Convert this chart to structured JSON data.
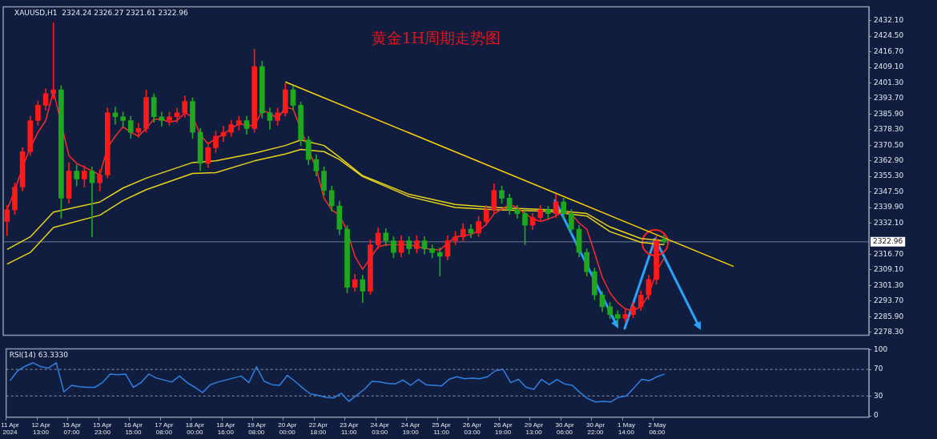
{
  "chart_data": [
    {
      "type": "candlestick",
      "title": "黄金1H周期走势图",
      "annotations": [
        "XAUUSD,H1  2324.24 2326.27 2321.61 2322.96"
      ],
      "categories": [
        null,
        null,
        null,
        null,
        null,
        null,
        null,
        null,
        null,
        null,
        null,
        null,
        null,
        null,
        null,
        null,
        null,
        null,
        null,
        null,
        null,
        null,
        null,
        null,
        null,
        null,
        null,
        null,
        null,
        null,
        null,
        null,
        null,
        null,
        null,
        null,
        null,
        null,
        null,
        null,
        null,
        null,
        null,
        null,
        null,
        null,
        null,
        null,
        null,
        null,
        null,
        null,
        null,
        null,
        null,
        null,
        null,
        null,
        null,
        null,
        null,
        null,
        null,
        null,
        null,
        null,
        null,
        null,
        null,
        null,
        null,
        null,
        null,
        null,
        null,
        null,
        null,
        null,
        null,
        null,
        null,
        null,
        null,
        null,
        null,
        null,
        null,
        null,
        null,
        null,
        null,
        null,
        null,
        null,
        null,
        null,
        null,
        null,
        null,
        null,
        null,
        null,
        null,
        null,
        null,
        null,
        null,
        null,
        null,
        null,
        null,
        null
      ],
      "ohlc": [
        [
          2333.0,
          2341.0,
          2326.0,
          2338.8
        ],
        [
          2338.8,
          2352.0,
          2336.5,
          2350.0
        ],
        [
          2350.0,
          2369.5,
          2348.0,
          2367.5
        ],
        [
          2367.5,
          2385.0,
          2365.5,
          2382.8
        ],
        [
          2382.8,
          2392.5,
          2380.5,
          2390.4
        ],
        [
          2390.4,
          2398.5,
          2388.0,
          2396.1
        ],
        [
          2396.1,
          2431.0,
          2393.5,
          2398.0
        ],
        [
          2398.0,
          2400.0,
          2334.5,
          2344.5
        ],
        [
          2344.5,
          2362.0,
          2342.0,
          2357.9
        ],
        [
          2357.9,
          2361.0,
          2350.5,
          2354.0
        ],
        [
          2354.0,
          2360.5,
          2350.0,
          2357.9
        ],
        [
          2357.9,
          2360.0,
          2325.4,
          2352.1
        ],
        [
          2352.1,
          2358.5,
          2348.0,
          2356.0
        ],
        [
          2356.0,
          2389.0,
          2354.5,
          2386.6
        ],
        [
          2386.6,
          2389.5,
          2381.0,
          2384.7
        ],
        [
          2384.7,
          2387.0,
          2379.5,
          2382.8
        ],
        [
          2382.8,
          2385.0,
          2374.0,
          2377.0
        ],
        [
          2377.0,
          2381.5,
          2374.5,
          2378.9
        ],
        [
          2378.9,
          2398.0,
          2377.0,
          2394.2
        ],
        [
          2394.2,
          2396.0,
          2382.0,
          2384.7
        ],
        [
          2384.7,
          2387.0,
          2380.0,
          2382.8
        ],
        [
          2382.8,
          2387.0,
          2380.5,
          2384.7
        ],
        [
          2384.7,
          2389.0,
          2382.0,
          2386.6
        ],
        [
          2386.6,
          2395.0,
          2384.5,
          2392.3
        ],
        [
          2392.3,
          2394.0,
          2374.0,
          2377.0
        ],
        [
          2377.0,
          2379.0,
          2358.0,
          2361.7
        ],
        [
          2361.7,
          2372.0,
          2359.5,
          2369.4
        ],
        [
          2369.4,
          2377.5,
          2367.0,
          2375.1
        ],
        [
          2375.1,
          2380.0,
          2372.5,
          2377.0
        ],
        [
          2377.0,
          2383.0,
          2375.0,
          2380.8
        ],
        [
          2380.8,
          2385.0,
          2378.0,
          2382.8
        ],
        [
          2382.8,
          2385.0,
          2376.0,
          2378.9
        ],
        [
          2378.9,
          2418.0,
          2377.0,
          2409.5
        ],
        [
          2409.5,
          2412.0,
          2384.0,
          2386.6
        ],
        [
          2386.6,
          2389.0,
          2378.5,
          2382.8
        ],
        [
          2382.8,
          2389.0,
          2380.5,
          2386.6
        ],
        [
          2386.6,
          2401.1,
          2385.0,
          2398.0
        ],
        [
          2398.0,
          2400.0,
          2388.0,
          2390.4
        ],
        [
          2390.4,
          2392.0,
          2370.5,
          2373.2
        ],
        [
          2373.2,
          2375.0,
          2361.0,
          2363.6
        ],
        [
          2363.6,
          2366.0,
          2355.5,
          2357.9
        ],
        [
          2357.9,
          2360.0,
          2346.0,
          2348.3
        ],
        [
          2348.3,
          2350.5,
          2338.0,
          2340.7
        ],
        [
          2340.7,
          2343.0,
          2326.5,
          2329.2
        ],
        [
          2329.2,
          2331.0,
          2297.8,
          2300.5
        ],
        [
          2300.5,
          2307.0,
          2298.5,
          2304.3
        ],
        [
          2304.3,
          2306.5,
          2293.0,
          2298.6
        ],
        [
          2298.6,
          2324.0,
          2297.0,
          2321.5
        ],
        [
          2321.5,
          2330.0,
          2319.5,
          2327.3
        ],
        [
          2327.3,
          2329.5,
          2321.0,
          2323.5
        ],
        [
          2323.5,
          2325.5,
          2315.0,
          2317.7
        ],
        [
          2317.7,
          2326.0,
          2315.5,
          2323.5
        ],
        [
          2323.5,
          2325.5,
          2317.0,
          2319.6
        ],
        [
          2319.6,
          2326.0,
          2317.5,
          2323.5
        ],
        [
          2323.5,
          2325.5,
          2317.0,
          2319.6
        ],
        [
          2319.6,
          2321.5,
          2315.0,
          2317.7
        ],
        [
          2317.7,
          2320.0,
          2306.0,
          2315.8
        ],
        [
          2315.8,
          2326.0,
          2314.0,
          2323.5
        ],
        [
          2323.5,
          2328.0,
          2321.5,
          2325.4
        ],
        [
          2325.4,
          2332.0,
          2323.5,
          2329.2
        ],
        [
          2329.2,
          2331.5,
          2325.0,
          2327.3
        ],
        [
          2327.3,
          2335.5,
          2325.5,
          2333.0
        ],
        [
          2333.0,
          2341.0,
          2331.0,
          2338.8
        ],
        [
          2338.8,
          2351.5,
          2337.0,
          2348.3
        ],
        [
          2348.3,
          2350.5,
          2342.0,
          2344.5
        ],
        [
          2344.5,
          2346.5,
          2336.5,
          2338.8
        ],
        [
          2338.8,
          2341.0,
          2334.5,
          2336.9
        ],
        [
          2336.9,
          2339.0,
          2321.5,
          2331.1
        ],
        [
          2331.1,
          2337.0,
          2329.0,
          2334.9
        ],
        [
          2334.9,
          2341.0,
          2333.0,
          2338.8
        ],
        [
          2338.8,
          2340.5,
          2334.5,
          2336.9
        ],
        [
          2336.9,
          2346.5,
          2335.0,
          2342.6
        ],
        [
          2342.6,
          2344.5,
          2334.5,
          2336.9
        ],
        [
          2336.9,
          2339.0,
          2327.0,
          2329.2
        ],
        [
          2329.2,
          2331.0,
          2315.5,
          2317.7
        ],
        [
          2317.7,
          2319.5,
          2306.0,
          2308.2
        ],
        [
          2308.2,
          2310.0,
          2294.5,
          2296.7
        ],
        [
          2296.7,
          2298.5,
          2288.5,
          2290.9
        ],
        [
          2290.9,
          2293.0,
          2285.0,
          2287.1
        ],
        [
          2287.1,
          2289.0,
          2282.4,
          2285.2
        ],
        [
          2285.2,
          2289.5,
          2283.5,
          2287.1
        ],
        [
          2287.1,
          2293.0,
          2285.5,
          2290.9
        ],
        [
          2290.9,
          2299.0,
          2289.0,
          2296.7
        ],
        [
          2296.7,
          2306.5,
          2294.5,
          2304.4
        ],
        [
          2304.4,
          2326.1,
          2302.0,
          2323.5
        ],
        [
          2324.24,
          2326.27,
          2321.61,
          2322.96
        ],
        null,
        null,
        null,
        null,
        null,
        null,
        null,
        null,
        null,
        null,
        null,
        null,
        null,
        null,
        null,
        null,
        null,
        null,
        null,
        null,
        null,
        null,
        null,
        null,
        null,
        null
      ],
      "colors": [
        "#ff1a1a",
        "#ff1a1a",
        "#ff1a1a",
        "#ff1a1a",
        "#ff1a1a",
        "#ff1a1a",
        "#ff1a1a",
        "#1fa81f",
        "#ff1a1a",
        "#1fa81f",
        "#ff1a1a",
        "#1fa81f",
        "#ff1a1a",
        "#ff1a1a",
        "#1fa81f",
        "#1fa81f",
        "#1fa81f",
        "#ff1a1a",
        "#ff1a1a",
        "#1fa81f",
        "#1fa81f",
        "#ff1a1a",
        "#ff1a1a",
        "#ff1a1a",
        "#1fa81f",
        "#1fa81f",
        "#ff1a1a",
        "#ff1a1a",
        "#ff1a1a",
        "#ff1a1a",
        "#ff1a1a",
        "#1fa81f",
        "#ff1a1a",
        "#1fa81f",
        "#1fa81f",
        "#ff1a1a",
        "#ff1a1a",
        "#1fa81f",
        "#1fa81f",
        "#1fa81f",
        "#1fa81f",
        "#1fa81f",
        "#1fa81f",
        "#1fa81f",
        "#1fa81f",
        "#ff1a1a",
        "#1fa81f",
        "#ff1a1a",
        "#ff1a1a",
        "#1fa81f",
        "#1fa81f",
        "#ff1a1a",
        "#1fa81f",
        "#ff1a1a",
        "#1fa81f",
        "#1fa81f",
        "#1fa81f",
        "#ff1a1a",
        "#ff1a1a",
        "#ff1a1a",
        "#1fa81f",
        "#ff1a1a",
        "#ff1a1a",
        "#ff1a1a",
        "#1fa81f",
        "#1fa81f",
        "#1fa81f",
        "#1fa81f",
        "#ff1a1a",
        "#ff1a1a",
        "#1fa81f",
        "#ff1a1a",
        "#1fa81f",
        "#1fa81f",
        "#1fa81f",
        "#1fa81f",
        "#1fa81f",
        "#1fa81f",
        "#1fa81f",
        "#1fa81f",
        "#ff1a1a",
        "#ff1a1a",
        "#ff1a1a",
        "#ff1a1a",
        "#ff1a1a",
        "#1fa81f",
        null,
        null,
        null,
        null,
        null,
        null,
        null,
        null,
        null,
        null,
        null,
        null,
        null,
        null,
        null,
        null,
        null,
        null,
        null,
        null,
        null,
        null,
        null,
        null,
        null,
        null
      ],
      "series": [
        {
          "type": "line",
          "color": "#ff2a2a",
          "values": [
            2338.8,
            2348.3,
            2359.8,
            2369.4,
            2377.0,
            2382.8,
            2397.3,
            null,
            2365.5,
            2361.7,
            2359.8,
            2357.9,
            2356.0,
            2369.4,
            2375.1,
            2379.7,
            2377.0,
            2375.1,
            2378.9,
            2383.5,
            2383.5,
            2382.0,
            2382.8,
            2386.6,
            2384.7,
            2375.9,
            2371.3,
            2374.0,
            2376.2,
            2378.9,
            2381.2,
            2380.5,
            2380.1,
            2387.7,
            2386.6,
            2383.5,
            2389.3,
            2388.5,
            null,
            null,
            2359.0,
            2344.5,
            2338.8,
            2336.1,
            2328.4,
            2315.8,
            2309.3,
            2315.0,
            2320.4,
            2321.5,
            2321.5,
            2321.5,
            2321.5,
            2320.8,
            2319.6,
            2319.3,
            2318.9,
            2322.3,
            2325.4,
            2326.1,
            2326.5,
            2328.4,
            2331.5,
            2336.8,
            2339.1,
            2341.4,
            2339.9,
            2336.8,
            2334.5,
            2333.0,
            2334.2,
            2335.7,
            2338.0,
            2336.8,
            2332.3,
            2329.2,
            2317.7,
            2305.5,
            2297.8,
            2292.9,
            2289.8,
            2289.0,
            2290.9,
            2296.7,
            2308.2,
            2315.0,
            null,
            null,
            null,
            null,
            null,
            null,
            null,
            null,
            null,
            null,
            null,
            null,
            null,
            null,
            null,
            null,
            null,
            null,
            null,
            null,
            null,
            null,
            null,
            null,
            null,
            null
          ]
        },
        {
          "type": "line",
          "color": "#e8d21a",
          "values": [
            2319.2,
            null,
            null,
            2325.4,
            null,
            null,
            2337.6,
            null,
            null,
            null,
            null,
            null,
            2342.6,
            null,
            null,
            2349.5,
            null,
            null,
            2354.4,
            null,
            null,
            null,
            null,
            null,
            2362.1,
            null,
            null,
            2362.9,
            null,
            null,
            null,
            null,
            2366.7,
            null,
            null,
            null,
            2370.5,
            null,
            2373.2,
            null,
            null,
            2370.5,
            null,
            2364.8,
            null,
            null,
            2355.6,
            null,
            null,
            null,
            null,
            null,
            2346.4,
            null,
            null,
            null,
            null,
            null,
            2341.4,
            null,
            null,
            null,
            null,
            2339.9,
            null,
            null,
            null,
            null,
            null,
            null,
            2338.8,
            null,
            null,
            null,
            null,
            2336.9,
            null,
            null,
            2330.3,
            null,
            null,
            null,
            2324.6,
            null,
            null,
            2323.5,
            null,
            null,
            null,
            null,
            null,
            null,
            null,
            null,
            null,
            null,
            null,
            null,
            null,
            null,
            null,
            null,
            null,
            null,
            null,
            null,
            null,
            null,
            null,
            null,
            null,
            null
          ]
        },
        {
          "type": "line",
          "color": "#e8d21a",
          "values": [
            2312.0,
            null,
            null,
            2317.7,
            null,
            null,
            2330.0,
            null,
            null,
            null,
            null,
            null,
            2336.1,
            null,
            null,
            2343.3,
            null,
            null,
            2348.7,
            null,
            null,
            null,
            null,
            null,
            2356.7,
            null,
            null,
            2357.1,
            null,
            null,
            null,
            null,
            2362.9,
            null,
            null,
            null,
            2366.3,
            null,
            2368.6,
            null,
            null,
            2367.5,
            null,
            2363.6,
            null,
            null,
            2355.2,
            null,
            null,
            null,
            null,
            null,
            2345.3,
            null,
            null,
            null,
            null,
            null,
            2339.9,
            null,
            null,
            null,
            null,
            2338.8,
            null,
            null,
            null,
            null,
            null,
            null,
            2338.0,
            null,
            null,
            null,
            null,
            2335.7,
            null,
            null,
            2328.0,
            null,
            null,
            null,
            2322.7,
            null,
            null,
            2321.5,
            null,
            null,
            null,
            null,
            null,
            null,
            null,
            null,
            null,
            null,
            null,
            null,
            null,
            null,
            null,
            null,
            null,
            null,
            null,
            null,
            null,
            null,
            null,
            null,
            null,
            null
          ]
        },
        {
          "type": "line",
          "color": "#ffd400",
          "values": [
            null,
            null,
            null,
            null,
            null,
            null,
            null,
            null,
            null,
            null,
            null,
            null,
            null,
            null,
            null,
            null,
            null,
            null,
            null,
            null,
            null,
            null,
            null,
            null,
            null,
            null,
            null,
            null,
            null,
            null,
            null,
            null,
            null,
            null,
            null,
            null,
            2401.9,
            null,
            null,
            null,
            null,
            null,
            null,
            null,
            null,
            null,
            null,
            null,
            null,
            null,
            null,
            null,
            null,
            null,
            null,
            null,
            null,
            null,
            null,
            null,
            null,
            null,
            null,
            null,
            null,
            null,
            null,
            null,
            null,
            null,
            null,
            null,
            null,
            null,
            null,
            null,
            null,
            null,
            null,
            null,
            null,
            null,
            null,
            null,
            null,
            null,
            null,
            null,
            null,
            null,
            null,
            null,
            null,
            null,
            2310.8,
            null,
            null,
            null,
            null,
            null,
            null,
            null,
            null,
            null,
            null,
            null,
            null,
            null,
            null,
            null,
            null,
            null
          ]
        }
      ],
      "ylim": [
        2276.8,
        2439.0
      ],
      "yticks": [
        {
          "value": 2278.3,
          "label": "2278.30"
        },
        {
          "value": 2285.9,
          "label": "2285.90"
        },
        {
          "value": 2293.7,
          "label": "2293.70"
        },
        {
          "value": 2301.3,
          "label": "2301.30"
        },
        {
          "value": 2309.1,
          "label": "2309.10"
        },
        {
          "value": 2316.7,
          "label": "2316.70"
        },
        {
          "value": 2332.1,
          "label": "2332.10"
        },
        {
          "value": 2339.9,
          "label": "2339.90"
        },
        {
          "value": 2347.5,
          "label": "2347.50"
        },
        {
          "value": 2355.3,
          "label": "2355.30"
        },
        {
          "value": 2362.9,
          "label": "2362.90"
        },
        {
          "value": 2370.5,
          "label": "2370.50"
        },
        {
          "value": 2378.3,
          "label": "2378.30"
        },
        {
          "value": 2385.9,
          "label": "2385.90"
        },
        {
          "value": 2393.7,
          "label": "2393.70"
        },
        {
          "value": 2401.3,
          "label": "2401.30"
        },
        {
          "value": 2409.1,
          "label": "2409.10"
        },
        {
          "value": 2416.7,
          "label": "2416.70"
        },
        {
          "value": 2424.5,
          "label": "2424.50"
        },
        {
          "value": 2432.1,
          "label": "2432.10"
        }
      ],
      "ref_lines": [
        {
          "axis": "y",
          "value": 2322.96,
          "label": "2322.96",
          "color": "#6f7a96"
        }
      ]
    },
    {
      "type": "line",
      "title": "RSI(14) 63.3330",
      "categories": [
        "11 Apr 2024",
        null,
        null,
        null,
        "12 Apr 13:00",
        null,
        null,
        null,
        "15 Apr 07:00",
        null,
        null,
        null,
        "15 Apr 23:00",
        null,
        null,
        null,
        "16 Apr 15:00",
        null,
        null,
        null,
        "17 Apr 08:00",
        null,
        null,
        null,
        "18 Apr 00:00",
        null,
        null,
        null,
        "18 Apr 16:00",
        null,
        null,
        null,
        "19 Apr 08:00",
        null,
        null,
        null,
        "20 Apr 00:00",
        null,
        null,
        null,
        "22 Apr 18:00",
        null,
        null,
        null,
        "23 Apr 11:00",
        null,
        null,
        null,
        "24 Apr 03:00",
        null,
        null,
        null,
        "24 Apr 19:00",
        null,
        null,
        null,
        "25 Apr 11:00",
        null,
        null,
        null,
        "26 Apr 03:00",
        null,
        null,
        null,
        "26 Apr 19:00",
        null,
        null,
        null,
        "29 Apr 13:00",
        null,
        null,
        null,
        "30 Apr 06:00",
        null,
        null,
        null,
        "30 Apr 22:00",
        null,
        null,
        null,
        "1 May 14:00",
        null,
        null,
        null,
        "2 May 06:00",
        null,
        null,
        null,
        null,
        null,
        null,
        null,
        null,
        null,
        null,
        null,
        null,
        null,
        null,
        null,
        null,
        null,
        null,
        null,
        null,
        null,
        null,
        null,
        null,
        null,
        null,
        null
      ],
      "values": [
        53,
        68,
        75,
        80,
        74,
        72,
        80,
        36,
        46,
        44,
        43,
        43,
        50,
        63,
        62,
        63,
        43,
        50,
        63,
        57,
        54,
        51,
        60,
        50,
        43,
        35,
        47,
        51,
        54,
        57,
        60,
        50,
        74,
        52,
        47,
        46,
        61,
        52,
        42,
        33,
        31,
        28,
        27,
        34,
        22,
        31,
        40,
        52,
        51,
        49,
        48,
        54,
        46,
        55,
        47,
        46,
        45,
        55,
        59,
        56,
        57,
        56,
        59,
        68,
        70,
        50,
        55,
        43,
        40,
        55,
        47,
        55,
        48,
        46,
        35,
        26,
        21,
        22,
        21,
        28,
        30,
        42,
        55,
        53,
        59,
        63,
        null,
        null,
        null,
        null,
        null,
        null,
        null,
        null,
        null,
        null,
        null,
        null,
        null,
        null,
        null,
        null,
        null,
        null,
        null,
        null,
        null,
        null,
        null,
        null,
        null,
        null
      ],
      "color": "#2f7fe0",
      "ylim": [
        -2,
        101
      ],
      "yticks": [
        0,
        30,
        70,
        100
      ],
      "ref_lines": [
        {
          "axis": "y",
          "value": 70,
          "color": "#8c96ad",
          "line_style": "dashed"
        },
        {
          "axis": "y",
          "value": 30,
          "color": "#8c96ad",
          "line_style": "dashed"
        }
      ]
    }
  ]
}
